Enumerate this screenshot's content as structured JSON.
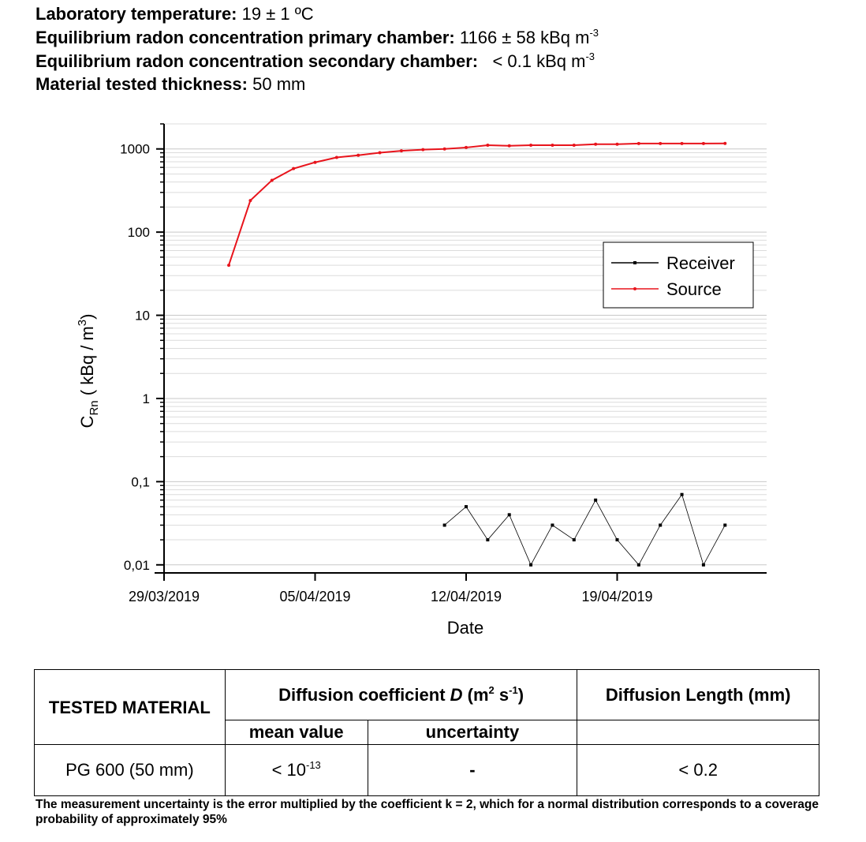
{
  "header": [
    {
      "label": "Laboratory temperature:",
      "value": "19 ± 1 ºC"
    },
    {
      "label": "Equilibrium radon concentration primary chamber:",
      "value": "1166 ± 58 kBq m",
      "sup": "-3"
    },
    {
      "label": "Equilibrium radon concentration secondary chamber:",
      "value": "< 0.1 kBq m",
      "sup": "-3"
    },
    {
      "label": "Material tested thickness:",
      "value": "50 mm"
    }
  ],
  "chart_data": {
    "type": "line",
    "xlabel": "Date",
    "ylabel": {
      "main": "C",
      "sub": "Rn",
      "text": " ( kBq / m",
      "sup": "3",
      "end": ")"
    },
    "x": [
      "01/04/2019",
      "02/04/2019",
      "03/04/2019",
      "04/04/2019",
      "05/04/2019",
      "06/04/2019",
      "07/04/2019",
      "08/04/2019",
      "09/04/2019",
      "10/04/2019",
      "11/04/2019",
      "12/04/2019",
      "13/04/2019",
      "14/04/2019",
      "15/04/2019",
      "16/04/2019",
      "17/04/2019",
      "18/04/2019",
      "19/04/2019",
      "20/04/2019",
      "21/04/2019",
      "22/04/2019",
      "23/04/2019",
      "24/04/2019"
    ],
    "series": [
      {
        "name": "Receiver",
        "color": "#000000",
        "marker": "square",
        "values": [
          null,
          null,
          null,
          null,
          null,
          null,
          null,
          null,
          null,
          null,
          0.03,
          0.05,
          0.02,
          0.04,
          0.01,
          0.03,
          0.02,
          0.06,
          0.02,
          0.01,
          0.03,
          0.07,
          0.01,
          0.03
        ]
      },
      {
        "name": "Source",
        "color": "#e8141c",
        "marker": "circle",
        "values": [
          40,
          240,
          420,
          580,
          690,
          790,
          840,
          900,
          950,
          980,
          1000,
          1040,
          1110,
          1090,
          1110,
          1110,
          1110,
          1140,
          1140,
          1160,
          1160,
          1160,
          1160,
          1166
        ]
      }
    ],
    "xlim": [
      "29/03/2019",
      "26/04/2019"
    ],
    "xticks": [
      "29/03/2019",
      "05/04/2019",
      "12/04/2019",
      "19/04/2019"
    ],
    "ylim": [
      0.008,
      2000
    ],
    "yticks": [
      {
        "value": 0.01,
        "label": "0,01"
      },
      {
        "value": 0.1,
        "label": "0,1"
      },
      1,
      10,
      100,
      1000
    ],
    "log_y": true,
    "grid": true,
    "legend": "right"
  },
  "table": {
    "columns": [
      "TESTED MATERIAL",
      [
        "Diffusion coefficient ",
        "D",
        " (m",
        "2",
        " s",
        "-1",
        ")"
      ],
      "Diffusion Length (mm)"
    ],
    "subcolumns": [
      "mean value",
      "uncertainty"
    ],
    "rows": [
      [
        "PG 600 (50 mm)",
        [
          "< 10",
          "-13"
        ],
        "-",
        "< 0.2"
      ]
    ]
  },
  "footnote": "The measurement uncertainty is the error multiplied by the coefficient k = 2, which for a normal distribution corresponds to a coverage probability of approximately 95%"
}
